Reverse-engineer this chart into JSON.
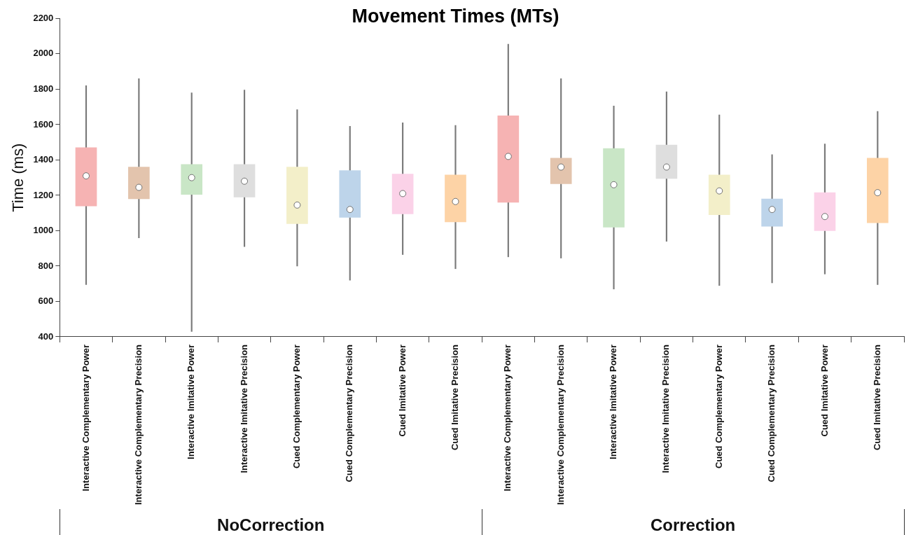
{
  "chart_data": {
    "type": "box",
    "title": "Movement Times (MTs)",
    "ylabel": "Time (ms)",
    "categories": [
      "Interactive Complementary Power",
      "Interactive Complementary Precision",
      "Interactive Imitative Power",
      "Interactive Imitative Precision",
      "Cued Complementary Power",
      "Cued Complementary Precision",
      "Cued Imitative Power",
      "Cued Imitative Precision",
      "Interactive Complementary Power",
      "Interactive Complementary Precision",
      "Interactive Imitative Power",
      "Interactive Imitative Precision",
      "Cued Complementary Power",
      "Cued Complementary Precision",
      "Cued Imitative Power",
      "Cued Imitative Precision"
    ],
    "boxes": [
      {
        "low": 695,
        "q1": 1140,
        "median": 1310,
        "q3": 1470,
        "high": 1820
      },
      {
        "low": 960,
        "q1": 1180,
        "median": 1245,
        "q3": 1360,
        "high": 1860
      },
      {
        "low": 430,
        "q1": 1205,
        "median": 1300,
        "q3": 1375,
        "high": 1780
      },
      {
        "low": 910,
        "q1": 1190,
        "median": 1280,
        "q3": 1375,
        "high": 1795
      },
      {
        "low": 800,
        "q1": 1040,
        "median": 1145,
        "q3": 1360,
        "high": 1685
      },
      {
        "low": 720,
        "q1": 1075,
        "median": 1120,
        "q3": 1340,
        "high": 1590
      },
      {
        "low": 865,
        "q1": 1095,
        "median": 1210,
        "q3": 1320,
        "high": 1610
      },
      {
        "low": 785,
        "q1": 1050,
        "median": 1165,
        "q3": 1315,
        "high": 1595
      },
      {
        "low": 852,
        "q1": 1160,
        "median": 1420,
        "q3": 1650,
        "high": 2055
      },
      {
        "low": 845,
        "q1": 1265,
        "median": 1360,
        "q3": 1410,
        "high": 1860
      },
      {
        "low": 670,
        "q1": 1020,
        "median": 1260,
        "q3": 1465,
        "high": 1705
      },
      {
        "low": 940,
        "q1": 1295,
        "median": 1360,
        "q3": 1485,
        "high": 1785
      },
      {
        "low": 690,
        "q1": 1090,
        "median": 1225,
        "q3": 1315,
        "high": 1655
      },
      {
        "low": 705,
        "q1": 1025,
        "median": 1120,
        "q3": 1180,
        "high": 1430
      },
      {
        "low": 755,
        "q1": 1000,
        "median": 1080,
        "q3": 1215,
        "high": 1490
      },
      {
        "low": 695,
        "q1": 1045,
        "median": 1215,
        "q3": 1410,
        "high": 1675
      }
    ],
    "colors": [
      "#f6b3b3",
      "#e3c4ad",
      "#c9e6c6",
      "#dedede",
      "#f3efc9",
      "#bdd4ea",
      "#fbd2e8",
      "#fdd3a6",
      "#f6b3b3",
      "#e3c4ad",
      "#c9e6c6",
      "#dedede",
      "#f3efc9",
      "#bdd4ea",
      "#fbd2e8",
      "#fdd3a6"
    ],
    "ylim": [
      400,
      2200
    ],
    "yticks": [
      400,
      600,
      800,
      1000,
      1200,
      1400,
      1600,
      1800,
      2000,
      2200
    ],
    "grid": false,
    "annotations": [
      "NoCorrection",
      "Correction"
    ]
  }
}
